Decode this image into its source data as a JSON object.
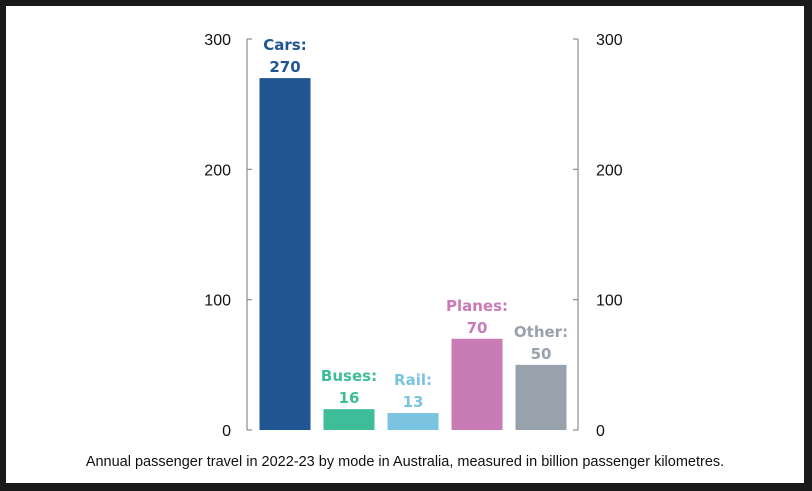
{
  "caption": "Annual passenger travel in 2022-23 by mode in Australia, measured in billion passenger kilometres.",
  "chart_data": {
    "type": "bar",
    "categories": [
      "Cars",
      "Buses",
      "Rail",
      "Planes",
      "Other"
    ],
    "values": [
      270,
      16,
      13,
      70,
      50
    ],
    "data_labels": [
      "Cars:",
      "Buses:",
      "Rail:",
      "Planes:",
      "Other:"
    ],
    "value_labels": [
      "270",
      "16",
      "13",
      "70",
      "50"
    ],
    "colors": [
      "#1f5591",
      "#3dbd98",
      "#7ac4e2",
      "#c97bb6",
      "#98a2ad"
    ],
    "label_colors": [
      "#1f5591",
      "#3dbd98",
      "#7ac4e2",
      "#c97bb6",
      "#98a2ad"
    ],
    "ylim": [
      0,
      300
    ],
    "yticks": [
      0,
      100,
      200,
      300
    ],
    "ytick_labels": [
      "0",
      "100",
      "200",
      "300"
    ],
    "right_axis": true,
    "grid": false,
    "legend": "none"
  }
}
